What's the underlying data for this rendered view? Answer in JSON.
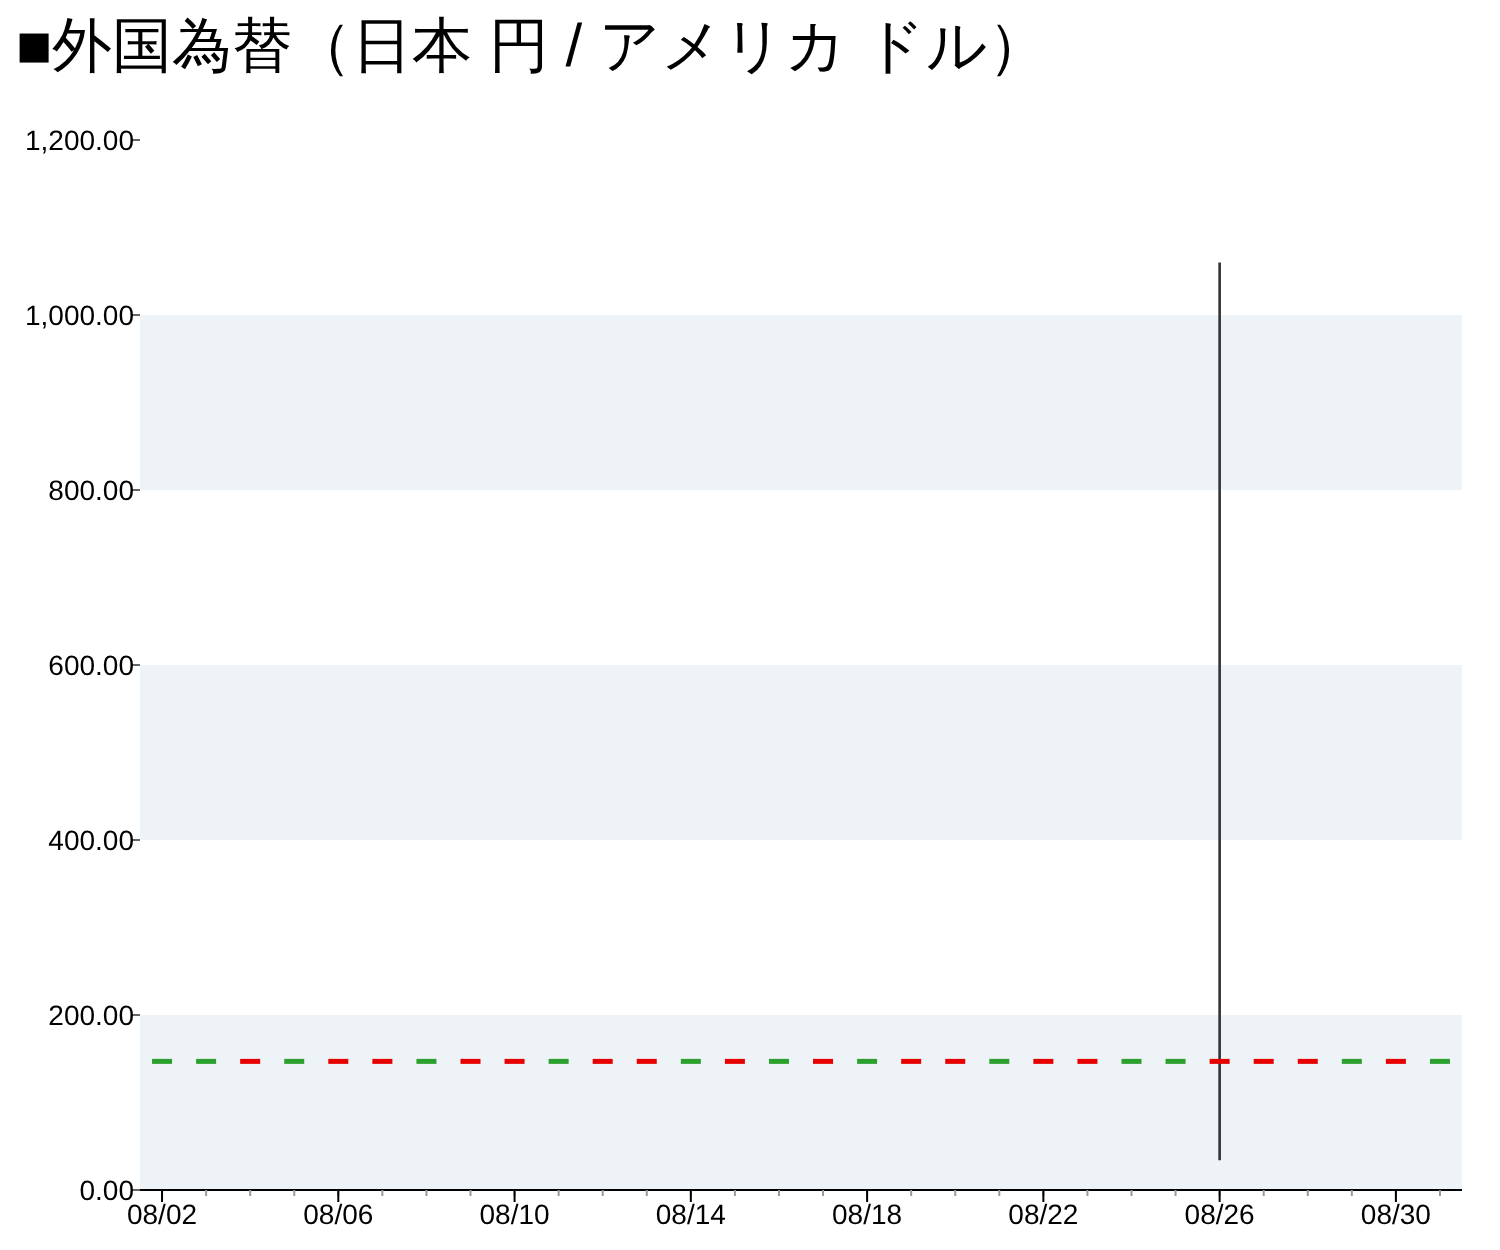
{
  "chart_data": {
    "type": "candlestick",
    "title": "■外国為替（日本 円 / アメリカ ドル）",
    "x": [
      "--08-02",
      "--08-03",
      "--08-04",
      "--08-05",
      "--08-06",
      "--08-07",
      "--08-08",
      "--08-09",
      "--08-10",
      "--08-11",
      "--08-12",
      "--08-13",
      "--08-14",
      "--08-15",
      "--08-16",
      "--08-17",
      "--08-18",
      "--08-19",
      "--08-20",
      "--08-21",
      "--08-22",
      "--08-23",
      "--08-24",
      "--08-25",
      "--08-26",
      "--08-27",
      "--08-28",
      "--08-29",
      "--08-30",
      "--08-31"
    ],
    "ohlc": [
      [
        146.9,
        147.3,
        146.7,
        147.1
      ],
      [
        146.9,
        147.3,
        146.7,
        147.1
      ],
      [
        147.1,
        147.3,
        146.7,
        146.9
      ],
      [
        146.9,
        147.3,
        146.7,
        147.1
      ],
      [
        147.1,
        147.3,
        146.7,
        146.9
      ],
      [
        147.1,
        147.3,
        146.7,
        146.9
      ],
      [
        146.9,
        147.3,
        146.7,
        147.1
      ],
      [
        147.1,
        147.3,
        146.7,
        146.9
      ],
      [
        147.1,
        147.3,
        146.7,
        146.9
      ],
      [
        146.9,
        147.3,
        146.7,
        147.1
      ],
      [
        147.1,
        147.3,
        146.7,
        146.9
      ],
      [
        147.1,
        147.3,
        146.7,
        146.9
      ],
      [
        146.9,
        147.3,
        146.7,
        147.1
      ],
      [
        147.1,
        147.3,
        146.7,
        146.9
      ],
      [
        146.9,
        147.3,
        146.7,
        147.1
      ],
      [
        147.1,
        147.3,
        146.7,
        146.9
      ],
      [
        146.9,
        147.3,
        146.7,
        147.1
      ],
      [
        147.1,
        147.3,
        146.7,
        146.9
      ],
      [
        147.1,
        147.3,
        146.7,
        146.9
      ],
      [
        146.9,
        147.3,
        146.7,
        147.1
      ],
      [
        147.1,
        147.3,
        146.7,
        146.9
      ],
      [
        147.1,
        147.3,
        146.7,
        146.9
      ],
      [
        146.9,
        147.3,
        146.7,
        147.1
      ],
      [
        146.9,
        147.3,
        146.7,
        147.1
      ],
      [
        147.1,
        1060,
        34,
        146.9
      ],
      [
        147.1,
        147.3,
        146.7,
        146.9
      ],
      [
        147.1,
        147.3,
        146.7,
        146.9
      ],
      [
        146.9,
        147.3,
        146.7,
        147.1
      ],
      [
        147.1,
        147.3,
        146.7,
        146.9
      ],
      [
        146.9,
        147.3,
        146.7,
        147.1
      ]
    ],
    "colors": [
      "#2ca02c",
      "#2ca02c",
      "#e60000",
      "#2ca02c",
      "#e60000",
      "#e60000",
      "#2ca02c",
      "#e60000",
      "#e60000",
      "#2ca02c",
      "#e60000",
      "#e60000",
      "#2ca02c",
      "#e60000",
      "#2ca02c",
      "#e60000",
      "#2ca02c",
      "#e60000",
      "#e60000",
      "#2ca02c",
      "#e60000",
      "#e60000",
      "#2ca02c",
      "#2ca02c",
      "#e60000",
      "#e60000",
      "#e60000",
      "#2ca02c",
      "#e60000",
      "#2ca02c"
    ],
    "xlim": [
      "--08-01T12:00",
      "--08-31T12:00"
    ],
    "xticks": [
      {
        "value": "--08-02",
        "label": "08/02"
      },
      {
        "value": "--08-06",
        "label": "08/06"
      },
      {
        "value": "--08-10",
        "label": "08/10"
      },
      {
        "value": "--08-14",
        "label": "08/14"
      },
      {
        "value": "--08-18",
        "label": "08/18"
      },
      {
        "value": "--08-22",
        "label": "08/22"
      },
      {
        "value": "--08-26",
        "label": "08/26"
      },
      {
        "value": "--08-30",
        "label": "08/30"
      }
    ],
    "ylim": [
      0,
      1200
    ],
    "yticks": [
      {
        "value": 0,
        "label": "0.00"
      },
      {
        "value": 200,
        "label": "200.00"
      },
      {
        "value": 400,
        "label": "400.00"
      },
      {
        "value": 600,
        "label": "600.00"
      },
      {
        "value": 800,
        "label": "800.00"
      },
      {
        "value": 1000,
        "label": "1,000.00"
      },
      {
        "value": 1200,
        "label": "1,200.00"
      }
    ],
    "bands": [
      {
        "axis": "y",
        "from": 0,
        "to": 200,
        "color": "#eef3f8"
      },
      {
        "axis": "y",
        "from": 400,
        "to": 600,
        "color": "#eef3f8"
      },
      {
        "axis": "y",
        "from": 800,
        "to": 1000,
        "color": "#eef3f8"
      }
    ]
  }
}
